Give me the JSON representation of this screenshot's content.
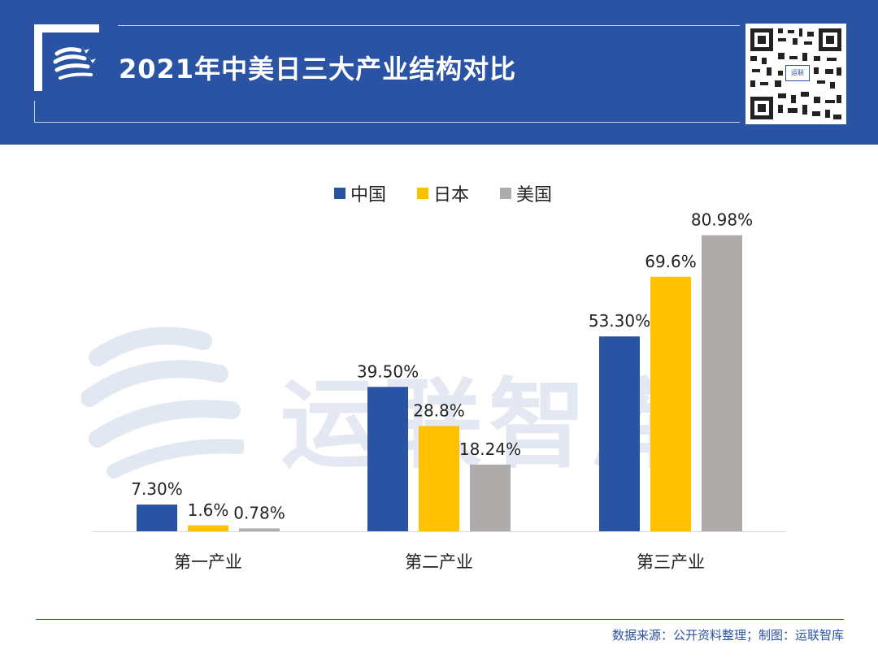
{
  "header": {
    "title": "2021年中美日三大产业结构对比",
    "qr_badge": "运联"
  },
  "watermark": {
    "text": "运联智库"
  },
  "colors": {
    "header_bg": "#2b53a4",
    "china": "#2b53a4",
    "japan": "#ffc000",
    "usa": "#afabab"
  },
  "chart_data": {
    "type": "bar",
    "title": "2021年中美日三大产业结构对比",
    "categories": [
      "第一产业",
      "第二产业",
      "第三产业"
    ],
    "series": [
      {
        "name": "中国",
        "color": "#2b53a4",
        "values": [
          7.3,
          39.5,
          53.3
        ],
        "labels": [
          "7.30%",
          "39.50%",
          "53.30%"
        ]
      },
      {
        "name": "日本",
        "color": "#ffc000",
        "values": [
          1.6,
          28.8,
          69.6
        ],
        "labels": [
          "1.6%",
          "28.8%",
          "69.6%"
        ]
      },
      {
        "name": "美国",
        "color": "#afabab",
        "values": [
          0.78,
          18.24,
          80.98
        ],
        "labels": [
          "0.78%",
          "18.24%",
          "80.98%"
        ]
      }
    ],
    "ylim": [
      0,
      100
    ],
    "xlabel": "",
    "ylabel": "",
    "legend": "top-center",
    "grid": false
  },
  "footer": {
    "source": "数据来源：公开资料整理；制图：运联智库"
  }
}
